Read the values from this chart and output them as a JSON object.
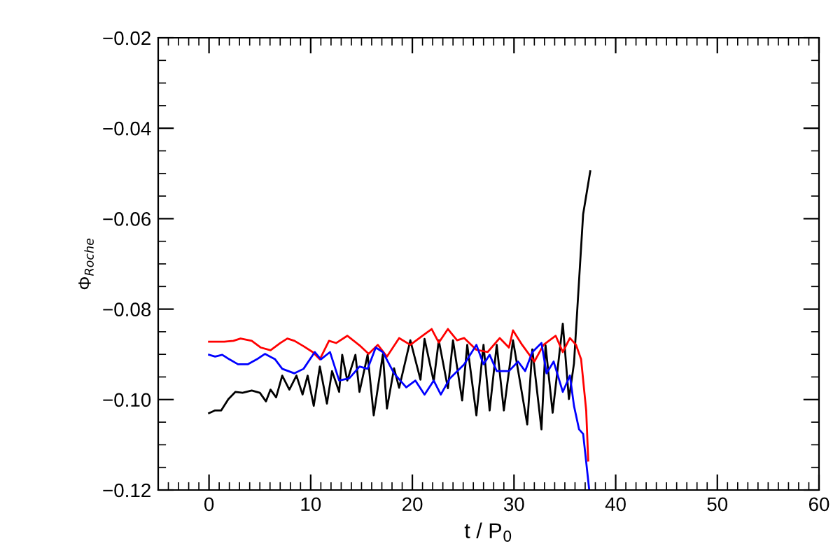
{
  "chart_data": {
    "type": "line",
    "xlabel": "t / P$_{0}$",
    "ylabel": "Φ$_{Roche}$",
    "xlim": [
      -5,
      60
    ],
    "xticks": [
      0,
      10,
      20,
      30,
      40,
      50,
      60
    ],
    "ylim": [
      -0.12,
      -0.02
    ],
    "yticks": [
      {
        "value": -0.12,
        "label": "−0.12"
      },
      {
        "value": -0.1,
        "label": "−0.10"
      },
      {
        "value": -0.08,
        "label": "−0.08"
      },
      {
        "value": -0.06,
        "label": "−0.06"
      },
      {
        "value": -0.04,
        "label": "−0.04"
      },
      {
        "value": -0.02,
        "label": "−0.02"
      }
    ],
    "grid": false,
    "legend": false,
    "marker": "none",
    "line_style": "solid",
    "series": [
      {
        "color": "#000000",
        "x": [
          0,
          0.6,
          1.2,
          1.9,
          2.6,
          3.3,
          4.2,
          5.0,
          5.6,
          6.05,
          6.6,
          7.2,
          7.9,
          8.6,
          9.2,
          9.7,
          10.3,
          10.9,
          11.6,
          12.1,
          12.8,
          13.1,
          13.6,
          14.4,
          14.8,
          15.6,
          16.2,
          17.1,
          17.5,
          18.2,
          18.7,
          19.8,
          20.8,
          21.2,
          22.1,
          22.6,
          23.5,
          24.0,
          24.9,
          25.4,
          26.3,
          27.0,
          27.6,
          28.3,
          29.0,
          29.9,
          31.3,
          31.8,
          32.7,
          33.1,
          33.8,
          34.8,
          35.4,
          35.9,
          36.4,
          36.8,
          37.5
        ],
        "values": [
          -0.103,
          -0.1024,
          -0.1024,
          -0.0999,
          -0.0983,
          -0.0985,
          -0.098,
          -0.0985,
          -0.1004,
          -0.0978,
          -0.0995,
          -0.0947,
          -0.0978,
          -0.0947,
          -0.0989,
          -0.0947,
          -0.1014,
          -0.0927,
          -0.1009,
          -0.0937,
          -0.0983,
          -0.0901,
          -0.0958,
          -0.0901,
          -0.0983,
          -0.0901,
          -0.1035,
          -0.09,
          -0.102,
          -0.0931,
          -0.0974,
          -0.0869,
          -0.0956,
          -0.0866,
          -0.096,
          -0.0869,
          -0.0975,
          -0.0869,
          -0.1002,
          -0.0879,
          -0.1035,
          -0.0879,
          -0.1024,
          -0.0879,
          -0.1024,
          -0.0869,
          -0.1055,
          -0.0889,
          -0.1066,
          -0.088,
          -0.1029,
          -0.0832,
          -0.0999,
          -0.092,
          -0.0736,
          -0.059,
          -0.0495
        ]
      },
      {
        "color": "#ff0000",
        "x": [
          0,
          1.5,
          2.4,
          3.1,
          4.2,
          5.1,
          6.05,
          7.0,
          7.7,
          8.4,
          9.3,
          10.2,
          10.9,
          11.8,
          12.5,
          13.6,
          14.8,
          15.7,
          16.6,
          17.5,
          18.7,
          19.8,
          21.0,
          21.9,
          22.6,
          23.5,
          24.4,
          25.1,
          26.3,
          27.4,
          28.6,
          29.5,
          29.9,
          30.8,
          32.0,
          32.9,
          34.1,
          34.8,
          35.5,
          36.1,
          36.6,
          37.1,
          37.3
        ],
        "values": [
          -0.0872,
          -0.0872,
          -0.087,
          -0.0865,
          -0.087,
          -0.0885,
          -0.0891,
          -0.0875,
          -0.0865,
          -0.087,
          -0.0882,
          -0.0895,
          -0.0911,
          -0.087,
          -0.0875,
          -0.0859,
          -0.088,
          -0.0899,
          -0.0879,
          -0.0905,
          -0.0864,
          -0.0879,
          -0.0859,
          -0.0844,
          -0.0874,
          -0.0844,
          -0.0869,
          -0.0864,
          -0.089,
          -0.0895,
          -0.0864,
          -0.0885,
          -0.0847,
          -0.0879,
          -0.0916,
          -0.0879,
          -0.0859,
          -0.0895,
          -0.0864,
          -0.0879,
          -0.0911,
          -0.1024,
          -0.1135
        ]
      },
      {
        "color": "#0000ff",
        "x": [
          0,
          0.6,
          1.3,
          2.0,
          2.85,
          3.8,
          4.7,
          5.5,
          6.5,
          7.2,
          8.4,
          9.3,
          10.4,
          11.0,
          11.9,
          12.8,
          13.8,
          14.8,
          15.6,
          16.4,
          17.1,
          18.2,
          19.4,
          20.3,
          21.2,
          22.1,
          22.8,
          23.7,
          25.1,
          26.3,
          27.0,
          27.6,
          28.3,
          29.5,
          30.4,
          31.1,
          31.8,
          32.7,
          33.2,
          33.9,
          34.8,
          35.5,
          35.9,
          36.4,
          36.8,
          37.4
        ],
        "values": [
          -0.0901,
          -0.0905,
          -0.0901,
          -0.0911,
          -0.0922,
          -0.0922,
          -0.0911,
          -0.0899,
          -0.0911,
          -0.0932,
          -0.0942,
          -0.0932,
          -0.0895,
          -0.0911,
          -0.0895,
          -0.0958,
          -0.0953,
          -0.0927,
          -0.0932,
          -0.0885,
          -0.0895,
          -0.0942,
          -0.0973,
          -0.0958,
          -0.0989,
          -0.0958,
          -0.0989,
          -0.0953,
          -0.0922,
          -0.0879,
          -0.0922,
          -0.0901,
          -0.0937,
          -0.0937,
          -0.0916,
          -0.0937,
          -0.0895,
          -0.0875,
          -0.0942,
          -0.0916,
          -0.0983,
          -0.0947,
          -0.1014,
          -0.1066,
          -0.1076,
          -0.12
        ]
      }
    ]
  }
}
